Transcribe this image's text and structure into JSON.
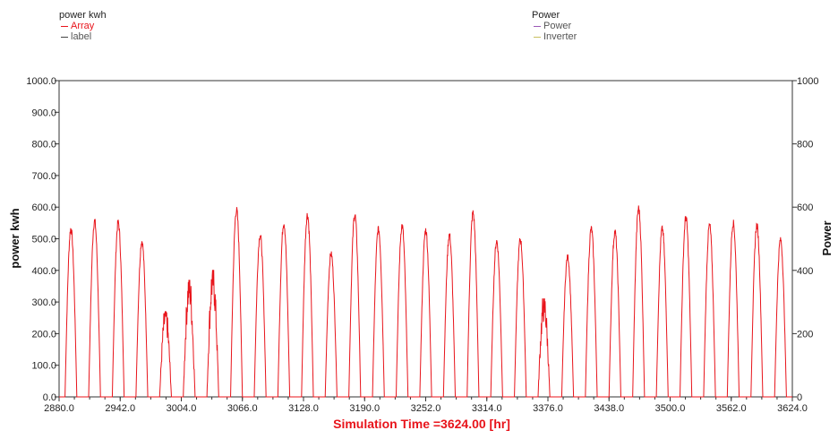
{
  "legends": {
    "left": {
      "title": "power kwh",
      "items": [
        {
          "label": "Array",
          "color": "#e8141b"
        },
        {
          "label": "label",
          "color": "#444444"
        }
      ]
    },
    "right": {
      "title": "Power",
      "items": [
        {
          "label": "Power",
          "color": "#9b59b6"
        },
        {
          "label": "Inverter",
          "color": "#c8c060"
        }
      ]
    }
  },
  "chart_data": {
    "type": "line",
    "xlabel": "Simulation Time =3624.00 [hr]",
    "ylabel": "power kwh",
    "y2label": "Power",
    "xlim": [
      2880,
      3624
    ],
    "ylim": [
      0,
      1000
    ],
    "y2lim": [
      0,
      1000
    ],
    "xticks": [
      "2880.0",
      "2942.0",
      "3004.0",
      "3066.0",
      "3128.0",
      "3190.0",
      "3252.0",
      "3314.0",
      "3376.0",
      "3438.0",
      "3500.0",
      "3562.0",
      "3624.0"
    ],
    "yticks": [
      "0.0",
      "100.0",
      "200.0",
      "300.0",
      "400.0",
      "500.0",
      "600.0",
      "700.0",
      "800.0",
      "900.0",
      "1000.0"
    ],
    "y2ticks": [
      "0",
      "200",
      "400",
      "600",
      "800",
      "1000"
    ],
    "grid": false,
    "line_color": "#e8141b",
    "series": [
      {
        "name": "Array",
        "day_start_hour": 2880,
        "sunrise_offset": 6,
        "sunset_offset": 18,
        "daily_peaks": [
          540,
          565,
          560,
          500,
          270,
          370,
          400,
          600,
          520,
          560,
          585,
          460,
          585,
          540,
          550,
          535,
          520,
          590,
          500,
          505,
          310,
          450,
          540,
          530,
          605,
          540,
          575,
          550,
          560,
          550,
          505
        ]
      }
    ]
  }
}
